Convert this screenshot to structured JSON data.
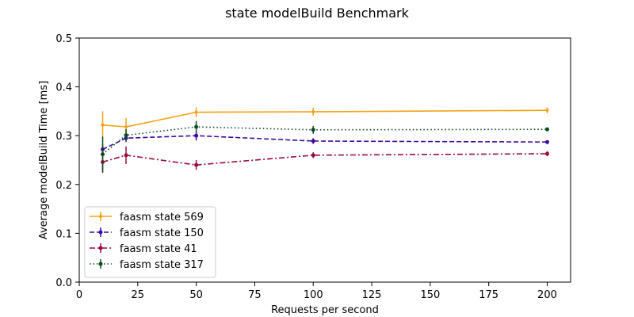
{
  "chart_data": {
    "type": "line",
    "title": "state modelBuild Benchmark",
    "xlabel": "Requests per second",
    "ylabel": "Average modelBuild Time [ms]",
    "xlim": [
      0,
      210
    ],
    "ylim": [
      0.0,
      0.5
    ],
    "xticks": [
      0,
      25,
      50,
      75,
      100,
      125,
      150,
      175,
      200
    ],
    "yticks": [
      0.0,
      0.1,
      0.2,
      0.3,
      0.4,
      0.5
    ],
    "ytick_labels": [
      "0.0",
      "0.1",
      "0.2",
      "0.3",
      "0.4",
      "0.5"
    ],
    "grid": false,
    "legend_position": "lower-left",
    "x": [
      10,
      20,
      50,
      100,
      200
    ],
    "series": [
      {
        "name": "faasm state 569",
        "color": "#f5a00f",
        "linestyle": "solid",
        "marker": "diamond",
        "values": [
          0.322,
          0.318,
          0.348,
          0.349,
          0.352
        ],
        "errors": [
          0.028,
          0.018,
          0.01,
          0.008,
          0.006
        ]
      },
      {
        "name": "faasm state 150",
        "color": "#3e0aa0",
        "linestyle": "dashed",
        "marker": "circle",
        "values": [
          0.272,
          0.295,
          0.3,
          0.289,
          0.287
        ],
        "errors": [
          0.01,
          0.008,
          0.01,
          0.006,
          0.004
        ]
      },
      {
        "name": "faasm state 41",
        "color": "#9b0a45",
        "linestyle": "dashdot",
        "marker": "circle",
        "values": [
          0.246,
          0.26,
          0.24,
          0.26,
          0.263
        ],
        "errors": [
          0.022,
          0.018,
          0.01,
          0.006,
          0.005
        ]
      },
      {
        "name": "faasm state 317",
        "color": "#0b4a1e",
        "linestyle": "dotted",
        "marker": "circle",
        "values": [
          0.262,
          0.301,
          0.318,
          0.312,
          0.313
        ],
        "errors": [
          0.036,
          0.012,
          0.012,
          0.008,
          0.004
        ]
      }
    ]
  }
}
